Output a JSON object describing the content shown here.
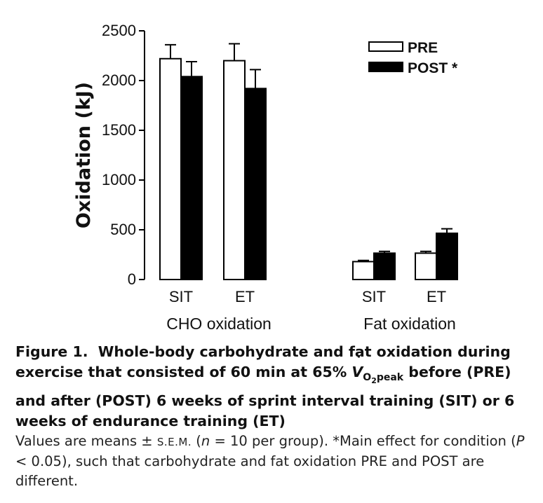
{
  "chart_data": {
    "type": "bar",
    "ylabel": "Oxidation (kJ)",
    "ylim": [
      0,
      2500
    ],
    "yticks": [
      0,
      500,
      1000,
      1500,
      2000,
      2500
    ],
    "groups": [
      {
        "label": "CHO oxidation",
        "categories": [
          "SIT",
          "ET"
        ]
      },
      {
        "label": "Fat oxidation",
        "categories": [
          "SIT",
          "ET"
        ]
      }
    ],
    "categories": [
      "SIT",
      "ET",
      "SIT",
      "ET"
    ],
    "series": [
      {
        "name": "PRE",
        "color": "#ffffff",
        "values": [
          2220,
          2200,
          180,
          265
        ],
        "error": [
          140,
          170,
          12,
          18
        ]
      },
      {
        "name": "POST *",
        "color": "#000000",
        "values": [
          2040,
          1920,
          265,
          465
        ],
        "error": [
          150,
          190,
          18,
          45
        ]
      }
    ],
    "legend_position": "top-right",
    "grid": false
  },
  "caption": {
    "figure_label": "Figure 1.",
    "title_part1": "Whole-body carbohydrate and fat oxidation during exercise that consisted of 60 min at 65%",
    "vo2_symbol": "V",
    "vo2_sub": "O2peak",
    "title_part2": "before (PRE) and after (POST) 6 weeks of sprint interval training (SIT) or 6 weeks of endurance training (ET)",
    "body_part1": "Values are means ±",
    "sem": "s.e.m.",
    "body_part2": "(",
    "n_symbol": "n",
    "body_part3": "= 10 per group). *Main effect for condition (",
    "p_symbol": "P",
    "body_part4": "< 0.05), such that carbohydrate and fat oxidation PRE and POST are different."
  }
}
